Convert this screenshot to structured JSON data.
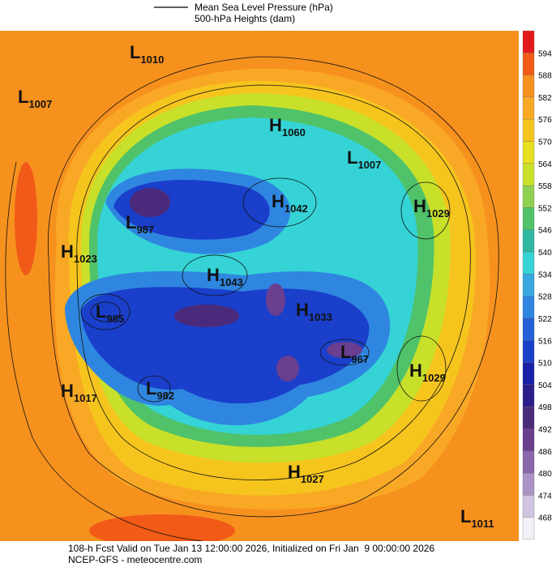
{
  "legend": {
    "items": [
      "Mean Sea Level Pressure (hPa)",
      "500-hPa Heights (dam)"
    ]
  },
  "pressure_centers": [
    {
      "type": "L",
      "value": "1010"
    },
    {
      "type": "L",
      "value": "1007"
    },
    {
      "type": "H",
      "value": "1060"
    },
    {
      "type": "L",
      "value": "1007"
    },
    {
      "type": "H",
      "value": "1042"
    },
    {
      "type": "H",
      "value": "1029"
    },
    {
      "type": "L",
      "value": "987"
    },
    {
      "type": "H",
      "value": "1023"
    },
    {
      "type": "H",
      "value": "1043"
    },
    {
      "type": "L",
      "value": "985"
    },
    {
      "type": "H",
      "value": "1033"
    },
    {
      "type": "L",
      "value": "967"
    },
    {
      "type": "H",
      "value": "1029"
    },
    {
      "type": "H",
      "value": "1017"
    },
    {
      "type": "L",
      "value": "982"
    },
    {
      "type": "H",
      "value": "1027"
    },
    {
      "type": "L",
      "value": "1011"
    }
  ],
  "colorbar": {
    "labels": [
      594,
      588,
      582,
      576,
      570,
      564,
      558,
      552,
      546,
      540,
      534,
      528,
      522,
      516,
      510,
      504,
      498,
      492,
      486,
      480,
      474,
      468
    ],
    "colors": [
      "#e31a1c",
      "#f25a18",
      "#f7911e",
      "#f9a825",
      "#f5c51d",
      "#e8e01f",
      "#c8e02a",
      "#8fd14f",
      "#4fc26a",
      "#2eb8a0",
      "#35d3d6",
      "#3aa8e0",
      "#2f86e0",
      "#2560d8",
      "#1a3fcb",
      "#1820a8",
      "#2a1f8a",
      "#4a2a7a",
      "#6a3f8f",
      "#8a66aa",
      "#ab93c6",
      "#d0c4e0",
      "#f4f0f8"
    ]
  },
  "footer": {
    "lines": [
      "108-h Fcst Valid on Tue Jan 13 12:00:00 2026, Initialized on Fri Jan  9 00:00:00 2026",
      "NCEP-GFS - meteocentre.com"
    ]
  }
}
